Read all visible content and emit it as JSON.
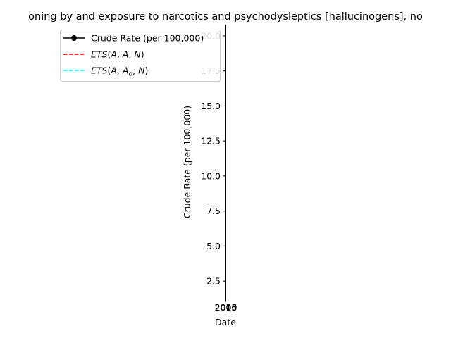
{
  "chart_data": {
    "type": "line",
    "title": "oning by and exposure to narcotics and psychodysleptics [hallucinogens], no",
    "xlabel": "Date",
    "ylabel": "Crude Rate (per 100,000)",
    "ylim": [
      1.2,
      20.8
    ],
    "y_ticks": [
      2.5,
      5.0,
      7.5,
      10.0,
      12.5,
      15.0,
      17.5,
      20.0
    ],
    "y_tick_labels": [
      "2.5",
      "5.0",
      "7.5",
      "10.0",
      "12.5",
      "15.0",
      "17.5",
      "20.0"
    ],
    "x_tick_labels": [
      "2000",
      "2005",
      "2010",
      "2015"
    ],
    "grid": false,
    "legend_position": "upper-left",
    "series": [
      {
        "name": "Crude Rate (per 100,000)",
        "color": "#000000",
        "style": "solid",
        "marker": "circle",
        "values": []
      },
      {
        "name": "ETS(A, A, N)",
        "color": "#ff0000",
        "style": "dashed",
        "values": []
      },
      {
        "name": "ETS(A, A_d, N)",
        "color": "#00ffff",
        "style": "dashed",
        "values": []
      }
    ]
  }
}
